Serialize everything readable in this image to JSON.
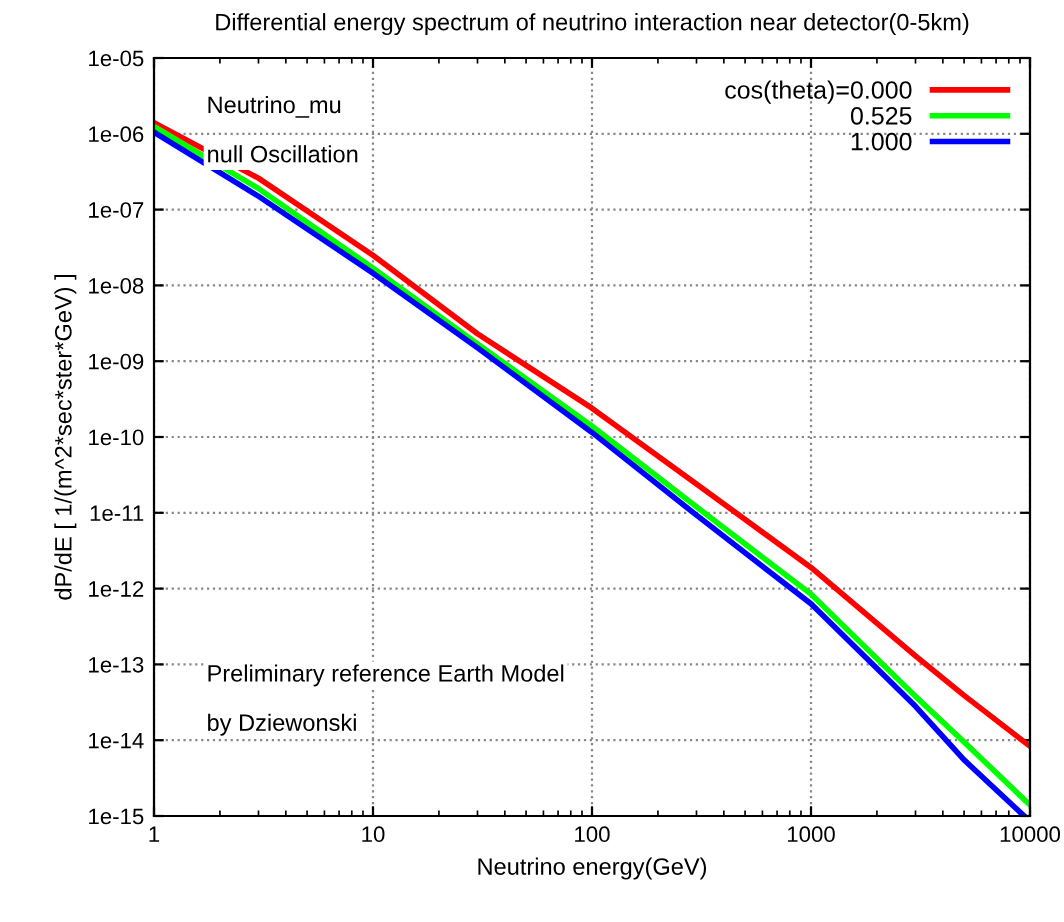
{
  "chart_data": {
    "type": "line",
    "title": "Differential energy spectrum of neutrino interaction near detector(0-5km)",
    "xlabel": "Neutrino energy(GeV)",
    "ylabel": "dP/dE [ 1/(m^2*sec*ster*GeV) ]",
    "log": "xy",
    "grid": true,
    "legend": "top right",
    "line_style": "solid",
    "marker": "none",
    "xlim": [
      1,
      10000
    ],
    "xticks": [
      1,
      10,
      100,
      1000,
      10000
    ],
    "ylim": [
      1e-15,
      1e-05
    ],
    "yticks": [
      {
        "value": 1e-15,
        "label": "1e-15"
      },
      {
        "value": 1e-14,
        "label": "1e-14"
      },
      {
        "value": 1e-13,
        "label": "1e-13"
      },
      {
        "value": 1e-12,
        "label": "1e-12"
      },
      {
        "value": 1e-11,
        "label": "1e-11"
      },
      {
        "value": 1e-10,
        "label": "1e-10"
      },
      {
        "value": 1e-09,
        "label": "1e-09"
      },
      {
        "value": 1e-08,
        "label": "1e-08"
      },
      {
        "value": 1e-07,
        "label": "1e-07"
      },
      {
        "value": 1e-06,
        "label": "1e-06"
      },
      {
        "value": 1e-05,
        "label": "1e-05"
      }
    ],
    "x": [
      1,
      3,
      10,
      30,
      100,
      300,
      1000,
      3000,
      5000,
      10000
    ],
    "series": [
      {
        "name": "cos(theta)=0.000",
        "color": "#ff0000",
        "values": [
          1.4e-06,
          2.6e-07,
          2.5e-08,
          2.3e-09,
          2.4e-10,
          2.4e-11,
          1.9e-12,
          1.3e-13,
          3.9e-14,
          8.3e-15
        ]
      },
      {
        "name": "0.525",
        "color": "#00ff00",
        "values": [
          1.25e-06,
          1.9e-07,
          1.7e-08,
          1.7e-09,
          1.4e-10,
          1.2e-11,
          8.5e-13,
          3.8e-14,
          9.5e-15,
          1.4e-15
        ]
      },
      {
        "name": "1.000",
        "color": "#0000ff",
        "x": [
          1,
          3,
          10,
          30,
          100,
          300,
          1000,
          3000,
          5000,
          9400
        ],
        "values": [
          1.05e-06,
          1.5e-07,
          1.45e-08,
          1.5e-09,
          1.15e-10,
          9.3e-12,
          6.3e-13,
          2.8e-14,
          5.5e-15,
          1e-15
        ]
      }
    ],
    "annotations": [
      "Neutrino_mu",
      "null Oscillation",
      "Preliminary reference Earth Model",
      "by Dziewonski"
    ]
  }
}
